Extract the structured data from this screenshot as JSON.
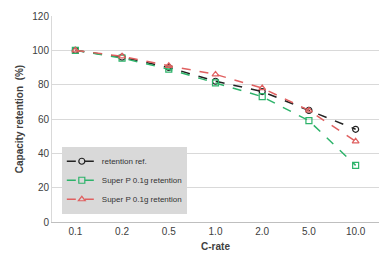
{
  "chart_data": {
    "type": "line",
    "x_label": "C-rate",
    "y_label": "Capacity retention  (%)",
    "categories": [
      "0.1",
      "0.2",
      "0.5",
      "1.0",
      "2.0",
      "5.0",
      "10.0"
    ],
    "series": [
      {
        "name": "retention ref.",
        "color": "#222222",
        "marker": "circle",
        "line_style": "dash",
        "values": [
          100,
          96,
          90,
          82,
          76,
          65,
          54
        ]
      },
      {
        "name": "Super P 0.1g retention",
        "color": "#2db36a",
        "marker": "square",
        "line_style": "dash",
        "values": [
          100,
          95.5,
          89,
          81,
          73,
          59,
          33
        ]
      },
      {
        "name": "Super P 0.1g retention",
        "color": "#e06060",
        "marker": "triangle-up",
        "line_style": "dash",
        "values": [
          100,
          96.5,
          91,
          86,
          78,
          65,
          47
        ]
      }
    ],
    "ylim": [
      0,
      120
    ],
    "yticks": [
      0,
      20,
      40,
      60,
      80,
      100,
      120
    ],
    "grid": true,
    "legend": "lower left"
  }
}
